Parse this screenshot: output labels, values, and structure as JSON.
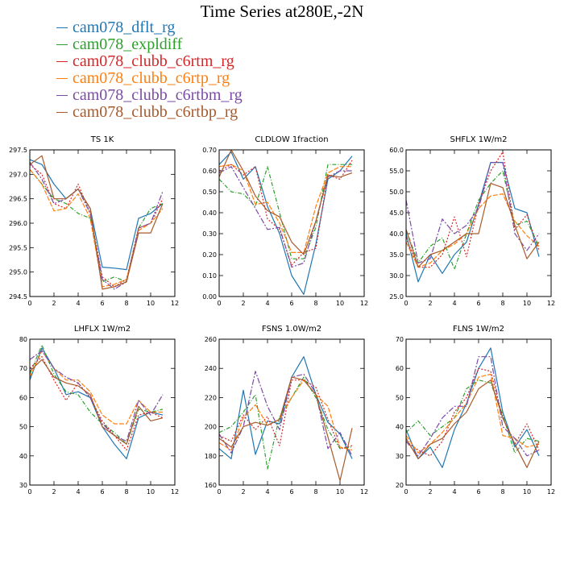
{
  "figure": {
    "title": "Time Series at280E,-2N"
  },
  "legend": [
    {
      "name": "cam078_dflt_rg",
      "color": "#1f77b4",
      "dash": ""
    },
    {
      "name": "cam078_expldiff",
      "color": "#2ca02c",
      "dash": "5,2,1,2"
    },
    {
      "name": "cam078_clubb_c6rtm_rg",
      "color": "#d62728",
      "dash": "2,2"
    },
    {
      "name": "cam078_clubb_c6rtp_rg",
      "color": "#ff7f0e",
      "dash": "6,2"
    },
    {
      "name": "cam078_clubb_c6rtbm_rg",
      "color": "#7b4ba5",
      "dash": "7,2,2,2"
    },
    {
      "name": "cam078_clubb_c6rtbp_rg",
      "color": "#a85a2a",
      "dash": ""
    }
  ],
  "chart_data": [
    {
      "type": "line",
      "title": "TS   1K",
      "x": [
        0,
        1,
        2,
        3,
        4,
        5,
        6,
        7,
        8,
        9,
        10,
        11
      ],
      "xlim": [
        0,
        12
      ],
      "xticks": [
        "0",
        "2",
        "4",
        "6",
        "8",
        "10",
        "12"
      ],
      "ylim": [
        294.5,
        297.5
      ],
      "yticks": [
        "294.5",
        "295.0",
        "295.5",
        "296.0",
        "296.5",
        "297.0",
        "297.5"
      ],
      "series": [
        {
          "name": "cam078_dflt_rg",
          "values": [
            297.3,
            297.2,
            296.8,
            296.5,
            296.7,
            296.3,
            295.1,
            295.08,
            295.05,
            296.1,
            296.2,
            296.4
          ]
        },
        {
          "name": "cam078_expldiff",
          "values": [
            297.1,
            296.8,
            296.5,
            296.4,
            296.2,
            296.1,
            294.8,
            294.9,
            294.8,
            295.9,
            296.3,
            296.4
          ]
        },
        {
          "name": "cam078_clubb_c6rtm_rg",
          "values": [
            297.2,
            297.0,
            296.4,
            296.3,
            296.8,
            296.2,
            294.9,
            294.7,
            294.85,
            295.9,
            296.0,
            296.5
          ]
        },
        {
          "name": "cam078_clubb_c6rtp_rg",
          "values": [
            297.1,
            296.8,
            296.25,
            296.3,
            296.6,
            296.1,
            294.7,
            294.75,
            294.85,
            295.85,
            296.0,
            296.3
          ]
        },
        {
          "name": "cam078_clubb_c6rtbm_rg",
          "values": [
            297.25,
            296.9,
            296.4,
            296.5,
            296.7,
            296.2,
            294.85,
            294.65,
            294.8,
            295.9,
            296.0,
            296.65
          ]
        },
        {
          "name": "cam078_clubb_c6rtbp_rg",
          "values": [
            297.2,
            297.38,
            296.5,
            296.5,
            296.7,
            296.3,
            294.65,
            294.7,
            294.8,
            295.8,
            295.8,
            296.4
          ]
        }
      ]
    },
    {
      "type": "line",
      "title": "CLDLOW   1fraction",
      "x": [
        0,
        1,
        2,
        3,
        4,
        5,
        6,
        7,
        8,
        9,
        10,
        11
      ],
      "xlim": [
        0,
        12
      ],
      "xticks": [
        "0",
        "2",
        "4",
        "6",
        "8",
        "10",
        "12"
      ],
      "ylim": [
        0.0,
        0.7
      ],
      "yticks": [
        "0.00",
        "0.10",
        "0.20",
        "0.30",
        "0.40",
        "0.50",
        "0.60",
        "0.70"
      ],
      "series": [
        {
          "name": "cam078_dflt_rg",
          "values": [
            0.63,
            0.69,
            0.56,
            0.62,
            0.43,
            0.3,
            0.1,
            0.01,
            0.25,
            0.56,
            0.6,
            0.67
          ]
        },
        {
          "name": "cam078_expldiff",
          "values": [
            0.56,
            0.5,
            0.49,
            0.43,
            0.62,
            0.4,
            0.18,
            0.18,
            0.33,
            0.63,
            0.63,
            0.63
          ]
        },
        {
          "name": "cam078_clubb_c6rtm_rg",
          "values": [
            0.6,
            0.63,
            0.58,
            0.62,
            0.37,
            0.32,
            0.15,
            0.21,
            0.23,
            0.58,
            0.56,
            0.65
          ]
        },
        {
          "name": "cam078_clubb_c6rtp_rg",
          "values": [
            0.62,
            0.63,
            0.6,
            0.44,
            0.45,
            0.35,
            0.21,
            0.21,
            0.43,
            0.59,
            0.62,
            0.62
          ]
        },
        {
          "name": "cam078_clubb_c6rtbm_rg",
          "values": [
            0.59,
            0.62,
            0.52,
            0.42,
            0.32,
            0.33,
            0.14,
            0.16,
            0.36,
            0.57,
            0.6,
            0.6
          ]
        },
        {
          "name": "cam078_clubb_c6rtbp_rg",
          "values": [
            0.57,
            0.7,
            0.6,
            0.48,
            0.41,
            0.38,
            0.26,
            0.2,
            0.36,
            0.58,
            0.57,
            0.59
          ]
        }
      ]
    },
    {
      "type": "line",
      "title": "SHFLX   1W/m2",
      "x": [
        0,
        1,
        2,
        3,
        4,
        5,
        6,
        7,
        8,
        9,
        10,
        11
      ],
      "xlim": [
        0,
        12
      ],
      "xticks": [
        "0",
        "2",
        "4",
        "6",
        "8",
        "10",
        "12"
      ],
      "ylim": [
        25.0,
        60.0
      ],
      "yticks": [
        "25.0",
        "30.0",
        "35.0",
        "40.0",
        "45.0",
        "50.0",
        "55.0",
        "60.0"
      ],
      "series": [
        {
          "name": "cam078_dflt_rg",
          "values": [
            40.0,
            28.5,
            35.0,
            30.5,
            35.0,
            38.0,
            47.0,
            57.0,
            57.0,
            46.0,
            45.0,
            34.5
          ]
        },
        {
          "name": "cam078_expldiff",
          "values": [
            41.0,
            33.0,
            37.0,
            39.0,
            31.5,
            40.0,
            48.0,
            52.0,
            55.0,
            42.0,
            43.0,
            37.0
          ]
        },
        {
          "name": "cam078_clubb_c6rtm_rg",
          "values": [
            39.0,
            32.0,
            32.0,
            35.0,
            44.0,
            34.5,
            47.0,
            55.0,
            59.5,
            41.0,
            44.5,
            36.0
          ]
        },
        {
          "name": "cam078_clubb_c6rtp_rg",
          "values": [
            38.0,
            32.0,
            33.0,
            36.0,
            37.5,
            40.0,
            46.0,
            49.0,
            49.5,
            43.0,
            39.5,
            37.0
          ]
        },
        {
          "name": "cam078_clubb_c6rtbm_rg",
          "values": [
            48.0,
            33.0,
            34.0,
            43.5,
            40.0,
            42.0,
            46.0,
            57.0,
            57.0,
            40.0,
            36.0,
            40.0
          ]
        },
        {
          "name": "cam078_clubb_c6rtbp_rg",
          "values": [
            41.0,
            32.0,
            35.0,
            36.0,
            38.0,
            40.0,
            40.0,
            52.0,
            51.0,
            42.0,
            34.0,
            38.0
          ]
        }
      ]
    },
    {
      "type": "line",
      "title": "LHFLX   1W/m2",
      "x": [
        0,
        1,
        2,
        3,
        4,
        5,
        6,
        7,
        8,
        9,
        10,
        11
      ],
      "xlim": [
        0,
        12
      ],
      "xticks": [
        "0",
        "2",
        "4",
        "6",
        "8",
        "10",
        "12"
      ],
      "ylim": [
        30,
        80
      ],
      "yticks": [
        "30",
        "40",
        "50",
        "60",
        "70",
        "80"
      ],
      "series": [
        {
          "name": "cam078_dflt_rg",
          "values": [
            66,
            77,
            70,
            61,
            62,
            60,
            50,
            44,
            39,
            53,
            55,
            54
          ]
        },
        {
          "name": "cam078_expldiff",
          "values": [
            68,
            78,
            68,
            62,
            61,
            55,
            51,
            48,
            44,
            56,
            55,
            56
          ]
        },
        {
          "name": "cam078_clubb_c6rtm_rg",
          "values": [
            70,
            74,
            66,
            59,
            65,
            60,
            52,
            47,
            42,
            54,
            55,
            53
          ]
        },
        {
          "name": "cam078_clubb_c6rtp_rg",
          "values": [
            67,
            76,
            70,
            66,
            66,
            62,
            54,
            51,
            51,
            59,
            55,
            55
          ]
        },
        {
          "name": "cam078_clubb_c6rtbm_rg",
          "values": [
            73,
            76,
            70,
            67,
            65,
            60,
            51,
            47,
            45,
            59,
            54,
            61
          ]
        },
        {
          "name": "cam078_clubb_c6rtbp_rg",
          "values": [
            69,
            73,
            67,
            65,
            64,
            61,
            50,
            47,
            44,
            57,
            52,
            53
          ]
        }
      ]
    },
    {
      "type": "line",
      "title": "FSNS   1.0W/m2",
      "x": [
        0,
        1,
        2,
        3,
        4,
        5,
        6,
        7,
        8,
        9,
        10,
        11
      ],
      "xlim": [
        0,
        12
      ],
      "xticks": [
        "0",
        "2",
        "4",
        "6",
        "8",
        "10",
        "12"
      ],
      "ylim": [
        160,
        260
      ],
      "yticks": [
        "160",
        "180",
        "200",
        "220",
        "240",
        "260"
      ],
      "series": [
        {
          "name": "cam078_dflt_rg",
          "values": [
            185,
            178,
            225,
            181,
            204,
            202,
            234,
            248,
            222,
            203,
            195,
            178
          ]
        },
        {
          "name": "cam078_expldiff",
          "values": [
            196,
            200,
            210,
            222,
            171,
            207,
            220,
            234,
            220,
            198,
            185,
            186
          ]
        },
        {
          "name": "cam078_clubb_c6rtm_rg",
          "values": [
            194,
            190,
            208,
            198,
            207,
            187,
            232,
            232,
            227,
            205,
            185,
            187
          ]
        },
        {
          "name": "cam078_clubb_c6rtp_rg",
          "values": [
            189,
            184,
            206,
            215,
            201,
            205,
            220,
            232,
            222,
            214,
            186,
            184
          ]
        },
        {
          "name": "cam078_clubb_c6rtbm_rg",
          "values": [
            195,
            182,
            200,
            238,
            214,
            198,
            234,
            236,
            223,
            185,
            196,
            180
          ]
        },
        {
          "name": "cam078_clubb_c6rtbp_rg",
          "values": [
            192,
            186,
            200,
            203,
            201,
            205,
            234,
            232,
            222,
            193,
            163,
            199
          ]
        }
      ]
    },
    {
      "type": "line",
      "title": "FLNS   1W/m2",
      "x": [
        0,
        1,
        2,
        3,
        4,
        5,
        6,
        7,
        8,
        9,
        10,
        11
      ],
      "xlim": [
        0,
        12
      ],
      "xticks": [
        "0",
        "2",
        "4",
        "6",
        "8",
        "10",
        "12"
      ],
      "ylim": [
        20,
        70
      ],
      "yticks": [
        "20",
        "30",
        "40",
        "50",
        "60",
        "70"
      ],
      "series": [
        {
          "name": "cam078_dflt_rg",
          "values": [
            39,
            29,
            33,
            26,
            39,
            48,
            60,
            67,
            45,
            33,
            39,
            30
          ]
        },
        {
          "name": "cam078_expldiff",
          "values": [
            38,
            42,
            37,
            40,
            43,
            53,
            56,
            55,
            44,
            31,
            36,
            35
          ]
        },
        {
          "name": "cam078_clubb_c6rtm_rg",
          "values": [
            35,
            32,
            30,
            35,
            45,
            50,
            60,
            59,
            43,
            34,
            41,
            32
          ]
        },
        {
          "name": "cam078_clubb_c6rtp_rg",
          "values": [
            37,
            31,
            34,
            38,
            43,
            48,
            57,
            58,
            37,
            36,
            33,
            34
          ]
        },
        {
          "name": "cam078_clubb_c6rtbm_rg",
          "values": [
            35,
            30,
            36,
            43,
            47,
            47,
            64,
            64,
            40,
            36,
            30,
            32
          ]
        },
        {
          "name": "cam078_clubb_c6rtbp_rg",
          "values": [
            36,
            29,
            34,
            36,
            41,
            45,
            53,
            56,
            43,
            34,
            26,
            35
          ]
        }
      ]
    }
  ]
}
